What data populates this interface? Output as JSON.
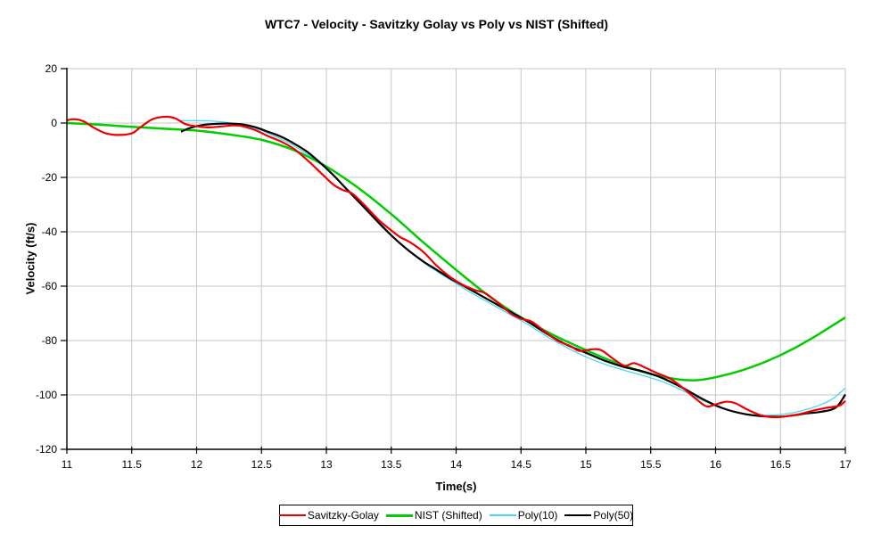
{
  "chart_data": {
    "type": "line",
    "title": "WTC7 - Velocity - Savitzky Golay vs Poly vs NIST (Shifted)",
    "xlabel": "Time(s)",
    "ylabel": "Velocity (ft/s)",
    "xlim": [
      11,
      17
    ],
    "ylim": [
      -120,
      20
    ],
    "grid": true,
    "legend_position": "bottom",
    "grid_color": "#c6c6c6",
    "axis_color": "#000000",
    "background_color": "#ffffff",
    "xticks": [
      {
        "value": 11,
        "label": "11"
      },
      {
        "value": 11.5,
        "label": "11.5"
      },
      {
        "value": 12,
        "label": "12"
      },
      {
        "value": 12.5,
        "label": "12.5"
      },
      {
        "value": 13,
        "label": "13"
      },
      {
        "value": 13.5,
        "label": "13.5"
      },
      {
        "value": 14,
        "label": "14"
      },
      {
        "value": 14.5,
        "label": "14.5"
      },
      {
        "value": 15,
        "label": "15"
      },
      {
        "value": 15.5,
        "label": "15.5"
      },
      {
        "value": 16,
        "label": "16"
      },
      {
        "value": 16.5,
        "label": "16.5"
      },
      {
        "value": 17,
        "label": "17"
      }
    ],
    "yticks": [
      {
        "value": 20,
        "label": "20"
      },
      {
        "value": 0,
        "label": "0"
      },
      {
        "value": -20,
        "label": "-20"
      },
      {
        "value": -40,
        "label": "-40"
      },
      {
        "value": -60,
        "label": "-60"
      },
      {
        "value": -80,
        "label": "-80"
      },
      {
        "value": -100,
        "label": "-100"
      },
      {
        "value": -120,
        "label": "-120"
      }
    ],
    "series": [
      {
        "name": "Savitzky-Golay",
        "color": "#ee0000",
        "width": 2.2,
        "points": [
          [
            11,
            1.0
          ],
          [
            11.05,
            1.4
          ],
          [
            11.1,
            1.1
          ],
          [
            11.15,
            0.1
          ],
          [
            11.2,
            -1.5
          ],
          [
            11.3,
            -3.8
          ],
          [
            11.4,
            -4.4
          ],
          [
            11.5,
            -3.8
          ],
          [
            11.55,
            -2.2
          ],
          [
            11.6,
            -0.4
          ],
          [
            11.65,
            1.2
          ],
          [
            11.7,
            2.0
          ],
          [
            11.78,
            2.3
          ],
          [
            11.84,
            1.6
          ],
          [
            11.88,
            0.5
          ],
          [
            11.92,
            -0.5
          ],
          [
            12,
            -1.2
          ],
          [
            12.1,
            -1.6
          ],
          [
            12.2,
            -1.2
          ],
          [
            12.28,
            -0.9
          ],
          [
            12.35,
            -1.1
          ],
          [
            12.45,
            -2.6
          ],
          [
            12.55,
            -4.8
          ],
          [
            12.65,
            -6.8
          ],
          [
            12.75,
            -9.5
          ],
          [
            12.85,
            -13.5
          ],
          [
            12.95,
            -18
          ],
          [
            13.05,
            -22.5
          ],
          [
            13.12,
            -24.5
          ],
          [
            13.2,
            -26
          ],
          [
            13.3,
            -30.5
          ],
          [
            13.4,
            -35.5
          ],
          [
            13.5,
            -39.5
          ],
          [
            13.57,
            -42
          ],
          [
            13.65,
            -44
          ],
          [
            13.75,
            -47.5
          ],
          [
            13.85,
            -52.5
          ],
          [
            13.95,
            -56.5
          ],
          [
            14.05,
            -59.5
          ],
          [
            14.15,
            -61.5
          ],
          [
            14.22,
            -62.5
          ],
          [
            14.32,
            -66
          ],
          [
            14.42,
            -70
          ],
          [
            14.5,
            -72
          ],
          [
            14.58,
            -73
          ],
          [
            14.68,
            -76.5
          ],
          [
            14.78,
            -80
          ],
          [
            14.88,
            -82
          ],
          [
            14.95,
            -83.8
          ],
          [
            15.05,
            -83.2
          ],
          [
            15.12,
            -83.6
          ],
          [
            15.22,
            -87
          ],
          [
            15.3,
            -89.3
          ],
          [
            15.37,
            -88.3
          ],
          [
            15.45,
            -89.8
          ],
          [
            15.55,
            -92
          ],
          [
            15.65,
            -94
          ],
          [
            15.75,
            -97.5
          ],
          [
            15.85,
            -101.5
          ],
          [
            15.93,
            -104.2
          ],
          [
            16,
            -103.5
          ],
          [
            16.08,
            -102.5
          ],
          [
            16.15,
            -103
          ],
          [
            16.25,
            -105.5
          ],
          [
            16.35,
            -107.5
          ],
          [
            16.45,
            -108.2
          ],
          [
            16.55,
            -107.8
          ],
          [
            16.65,
            -107
          ],
          [
            16.75,
            -105.8
          ],
          [
            16.85,
            -104.8
          ],
          [
            16.95,
            -104
          ],
          [
            17,
            -102.2
          ]
        ]
      },
      {
        "name": "NIST (Shifted)",
        "color": "#00cc00",
        "width": 2.5,
        "points": [
          [
            11,
            0
          ],
          [
            11.25,
            -0.6
          ],
          [
            11.5,
            -1.4
          ],
          [
            11.75,
            -2.1
          ],
          [
            12,
            -2.8
          ],
          [
            12.25,
            -4.2
          ],
          [
            12.5,
            -6.2
          ],
          [
            12.75,
            -10
          ],
          [
            13,
            -16
          ],
          [
            13.25,
            -24
          ],
          [
            13.5,
            -33.5
          ],
          [
            13.75,
            -44
          ],
          [
            14,
            -54
          ],
          [
            14.25,
            -63.5
          ],
          [
            14.5,
            -71.5
          ],
          [
            14.75,
            -78
          ],
          [
            15,
            -83.5
          ],
          [
            15.25,
            -88.5
          ],
          [
            15.5,
            -92.3
          ],
          [
            15.7,
            -94.2
          ],
          [
            15.85,
            -94.6
          ],
          [
            16,
            -93.5
          ],
          [
            16.2,
            -91
          ],
          [
            16.4,
            -87.5
          ],
          [
            16.6,
            -83
          ],
          [
            16.8,
            -77.5
          ],
          [
            17,
            -71.5
          ]
        ]
      },
      {
        "name": "Poly(10)",
        "color": "#4fd5ee",
        "width": 1.3,
        "points": [
          [
            11.88,
            0.9
          ],
          [
            12,
            0.9
          ],
          [
            12.1,
            0.8
          ],
          [
            12.2,
            0.4
          ],
          [
            12.3,
            -0.3
          ],
          [
            12.4,
            -1.3
          ],
          [
            12.5,
            -2.8
          ],
          [
            12.6,
            -4.8
          ],
          [
            12.7,
            -7
          ],
          [
            12.8,
            -9.8
          ],
          [
            12.9,
            -13
          ],
          [
            13,
            -17
          ],
          [
            13.1,
            -21.5
          ],
          [
            13.2,
            -26
          ],
          [
            13.3,
            -31
          ],
          [
            13.4,
            -36
          ],
          [
            13.5,
            -41
          ],
          [
            13.6,
            -45.5
          ],
          [
            13.7,
            -49.5
          ],
          [
            13.8,
            -53
          ],
          [
            13.95,
            -57.5
          ],
          [
            14.1,
            -62
          ],
          [
            14.25,
            -66
          ],
          [
            14.4,
            -70
          ],
          [
            14.55,
            -74
          ],
          [
            14.7,
            -78.5
          ],
          [
            14.85,
            -82.5
          ],
          [
            15,
            -86
          ],
          [
            15.15,
            -88.8
          ],
          [
            15.3,
            -91
          ],
          [
            15.45,
            -93
          ],
          [
            15.6,
            -95.3
          ],
          [
            15.75,
            -98.5
          ],
          [
            15.9,
            -102
          ],
          [
            16.05,
            -105
          ],
          [
            16.2,
            -106.8
          ],
          [
            16.35,
            -107.5
          ],
          [
            16.5,
            -107.2
          ],
          [
            16.65,
            -106
          ],
          [
            16.8,
            -103.8
          ],
          [
            16.9,
            -101.5
          ],
          [
            17,
            -97.5
          ]
        ]
      },
      {
        "name": "Poly(50)",
        "color": "#000000",
        "width": 2.2,
        "points": [
          [
            11.88,
            -3.2
          ],
          [
            11.95,
            -1.8
          ],
          [
            12.05,
            -0.7
          ],
          [
            12.15,
            -0.3
          ],
          [
            12.25,
            -0.2
          ],
          [
            12.35,
            -0.5
          ],
          [
            12.45,
            -1.5
          ],
          [
            12.55,
            -3.2
          ],
          [
            12.65,
            -5
          ],
          [
            12.75,
            -7.5
          ],
          [
            12.85,
            -10.5
          ],
          [
            12.95,
            -14.5
          ],
          [
            13.05,
            -19
          ],
          [
            13.15,
            -24
          ],
          [
            13.25,
            -29
          ],
          [
            13.35,
            -34
          ],
          [
            13.45,
            -39
          ],
          [
            13.55,
            -43.5
          ],
          [
            13.65,
            -47.5
          ],
          [
            13.75,
            -51
          ],
          [
            13.85,
            -54
          ],
          [
            13.95,
            -57
          ],
          [
            14.1,
            -61
          ],
          [
            14.25,
            -65
          ],
          [
            14.4,
            -69
          ],
          [
            14.55,
            -73
          ],
          [
            14.7,
            -77.5
          ],
          [
            14.85,
            -81.5
          ],
          [
            15,
            -84.5
          ],
          [
            15.15,
            -87.5
          ],
          [
            15.3,
            -89.8
          ],
          [
            15.45,
            -91.5
          ],
          [
            15.6,
            -94
          ],
          [
            15.75,
            -97.5
          ],
          [
            15.9,
            -101.5
          ],
          [
            16.05,
            -104.8
          ],
          [
            16.2,
            -106.8
          ],
          [
            16.35,
            -107.8
          ],
          [
            16.5,
            -108
          ],
          [
            16.6,
            -107.5
          ],
          [
            16.7,
            -106.8
          ],
          [
            16.8,
            -106.3
          ],
          [
            16.9,
            -105.3
          ],
          [
            16.95,
            -103.5
          ],
          [
            17,
            -99.8
          ]
        ]
      }
    ]
  }
}
